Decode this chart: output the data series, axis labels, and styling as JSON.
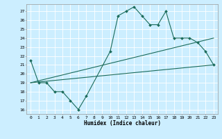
{
  "title": "",
  "xlabel": "Humidex (Indice chaleur)",
  "bg_color": "#cceeff",
  "grid_color": "#ffffff",
  "line_color": "#1a6b5a",
  "xlim": [
    -0.5,
    23.5
  ],
  "ylim": [
    15.5,
    27.8
  ],
  "yticks": [
    16,
    17,
    18,
    19,
    20,
    21,
    22,
    23,
    24,
    25,
    26,
    27
  ],
  "xticks": [
    0,
    1,
    2,
    3,
    4,
    5,
    6,
    7,
    8,
    9,
    10,
    11,
    12,
    13,
    14,
    15,
    16,
    17,
    18,
    19,
    20,
    21,
    22,
    23
  ],
  "series1_x": [
    0,
    1,
    2,
    3,
    4,
    5,
    6,
    7,
    10,
    11,
    12,
    13,
    14,
    15,
    16,
    17,
    18,
    19,
    20,
    21,
    22,
    23
  ],
  "series1_y": [
    21.5,
    19.0,
    19.0,
    18.0,
    18.0,
    17.0,
    16.0,
    17.5,
    22.5,
    26.5,
    27.0,
    27.5,
    26.5,
    25.5,
    25.5,
    27.0,
    24.0,
    24.0,
    24.0,
    23.5,
    22.5,
    21.0
  ],
  "series2_x": [
    0,
    23
  ],
  "series2_y": [
    19.0,
    21.0
  ],
  "series3_x": [
    0,
    23
  ],
  "series3_y": [
    19.0,
    24.0
  ]
}
